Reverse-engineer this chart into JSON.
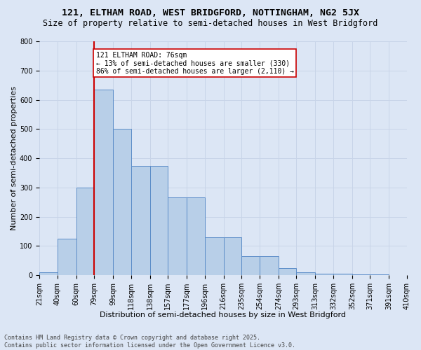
{
  "title1": "121, ELTHAM ROAD, WEST BRIDGFORD, NOTTINGHAM, NG2 5JX",
  "title2": "Size of property relative to semi-detached houses in West Bridgford",
  "xlabel": "Distribution of semi-detached houses by size in West Bridgford",
  "ylabel": "Number of semi-detached properties",
  "footer1": "Contains HM Land Registry data © Crown copyright and database right 2025.",
  "footer2": "Contains public sector information licensed under the Open Government Licence v3.0.",
  "annotation_title": "121 ELTHAM ROAD: 76sqm",
  "annotation_line1": "← 13% of semi-detached houses are smaller (330)",
  "annotation_line2": "86% of semi-detached houses are larger (2,110) →",
  "categories": [
    "21sqm",
    "40sqm",
    "60sqm",
    "79sqm",
    "99sqm",
    "118sqm",
    "138sqm",
    "157sqm",
    "177sqm",
    "196sqm",
    "216sqm",
    "235sqm",
    "254sqm",
    "274sqm",
    "293sqm",
    "313sqm",
    "332sqm",
    "352sqm",
    "371sqm",
    "391sqm",
    "410sqm"
  ],
  "bin_edges": [
    21,
    40,
    60,
    79,
    99,
    118,
    138,
    157,
    177,
    196,
    216,
    235,
    254,
    274,
    293,
    313,
    332,
    352,
    371,
    391,
    410
  ],
  "values": [
    10,
    125,
    300,
    635,
    500,
    375,
    375,
    265,
    265,
    130,
    130,
    65,
    65,
    25,
    10,
    5,
    5,
    2,
    2,
    0,
    0
  ],
  "bar_color": "#b8cfe8",
  "bar_edge_color": "#5b8cc8",
  "vline_color": "#cc0000",
  "vline_x": 79,
  "annotation_box_edge": "#cc0000",
  "annotation_fill": "#ffffff",
  "grid_color": "#c8d4e8",
  "background_color": "#dce6f5",
  "ylim": [
    0,
    800
  ],
  "yticks": [
    0,
    100,
    200,
    300,
    400,
    500,
    600,
    700,
    800
  ],
  "title1_fontsize": 9.5,
  "title2_fontsize": 8.5,
  "xlabel_fontsize": 8,
  "ylabel_fontsize": 8,
  "tick_fontsize": 7,
  "annotation_fontsize": 7,
  "footer_fontsize": 6
}
